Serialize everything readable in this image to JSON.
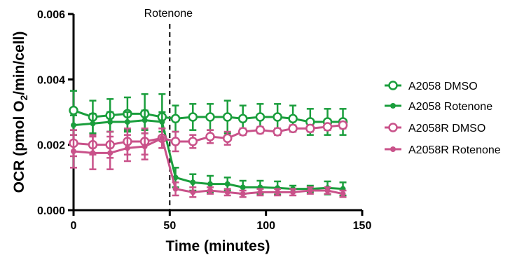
{
  "chart_data": {
    "type": "line",
    "title": "",
    "xlabel": "Time (minutes)",
    "ylabel_parts": [
      "OCR (pmol O",
      "2",
      "/min/cell)"
    ],
    "xlim": [
      0,
      150
    ],
    "ylim": [
      0.0,
      0.006
    ],
    "x_ticks": [
      0,
      50,
      100,
      150
    ],
    "x_tick_labels": [
      "0",
      "50",
      "100",
      "150"
    ],
    "y_ticks": [
      0.0,
      0.002,
      0.004,
      0.006
    ],
    "y_tick_labels": [
      "0.000",
      "0.002",
      "0.004",
      "0.006"
    ],
    "grid": false,
    "legend_position": "right",
    "annotation": {
      "label": "Rotenone",
      "x": 50
    },
    "series": [
      {
        "name": "A2058 DMSO",
        "color": "#1a9e3c",
        "marker": "open-circle",
        "x": [
          0,
          10,
          19,
          28,
          37,
          46,
          53,
          62,
          71,
          80,
          88,
          97,
          106,
          114,
          123,
          132,
          140
        ],
        "y": [
          0.00305,
          0.00285,
          0.0029,
          0.00295,
          0.00295,
          0.00285,
          0.0028,
          0.00285,
          0.00285,
          0.00285,
          0.0028,
          0.00285,
          0.00285,
          0.0028,
          0.0027,
          0.0027,
          0.0027
        ],
        "err": [
          0.0006,
          0.0005,
          0.0005,
          0.0005,
          0.0006,
          0.0007,
          0.0004,
          0.0004,
          0.0004,
          0.0005,
          0.0004,
          0.0004,
          0.0004,
          0.0004,
          0.0004,
          0.0004,
          0.0004
        ]
      },
      {
        "name": "A2058 Rotenone",
        "color": "#1a9e3c",
        "marker": "filled-circle",
        "x": [
          0,
          10,
          19,
          28,
          37,
          46,
          53,
          62,
          71,
          80,
          88,
          97,
          106,
          114,
          123,
          132,
          140
        ],
        "y": [
          0.0026,
          0.00265,
          0.0027,
          0.0027,
          0.00275,
          0.0027,
          0.001,
          0.00085,
          0.0008,
          0.0008,
          0.0007,
          0.0007,
          0.00068,
          0.00065,
          0.00065,
          0.00068,
          0.00065
        ],
        "err": [
          0.0003,
          0.0003,
          0.0003,
          0.0003,
          0.0003,
          0.0003,
          0.0003,
          0.00025,
          0.00025,
          0.0002,
          0.0002,
          0.0002,
          0.0002,
          0.0001,
          0.0001,
          0.0002,
          0.0002
        ]
      },
      {
        "name": "A2058R DMSO",
        "color": "#c9528a",
        "marker": "open-circle",
        "x": [
          0,
          10,
          19,
          28,
          37,
          46,
          53,
          62,
          71,
          80,
          88,
          97,
          106,
          114,
          123,
          132,
          140
        ],
        "y": [
          0.00205,
          0.002,
          0.002,
          0.0021,
          0.0021,
          0.0022,
          0.0021,
          0.0021,
          0.00225,
          0.0022,
          0.0024,
          0.00245,
          0.0024,
          0.0025,
          0.0025,
          0.00255,
          0.0026
        ],
        "err": [
          0.0004,
          0.0003,
          0.0004,
          0.0004,
          0.0004,
          0.0003,
          0.0003,
          0.0002,
          0.0002,
          0.0002,
          0.0001,
          0.0001,
          0.0001,
          0.0001,
          0.0001,
          0.0001,
          0.0001
        ]
      },
      {
        "name": "A2058R Rotenone",
        "color": "#c9528a",
        "marker": "filled-circle",
        "x": [
          0,
          10,
          19,
          28,
          37,
          46,
          53,
          62,
          71,
          80,
          88,
          97,
          106,
          114,
          123,
          132,
          140
        ],
        "y": [
          0.0018,
          0.00175,
          0.00175,
          0.0019,
          0.00195,
          0.0022,
          0.00065,
          0.00055,
          0.0006,
          0.00055,
          0.0005,
          0.00055,
          0.00055,
          0.00055,
          0.0006,
          0.0006,
          0.0005
        ],
        "err": [
          0.0005,
          0.0005,
          0.0005,
          0.0004,
          0.0004,
          0.0003,
          0.0002,
          0.00015,
          0.0001,
          0.0001,
          0.0001,
          0.0001,
          0.0001,
          0.0001,
          0.0001,
          0.0001,
          0.0001
        ]
      }
    ]
  }
}
